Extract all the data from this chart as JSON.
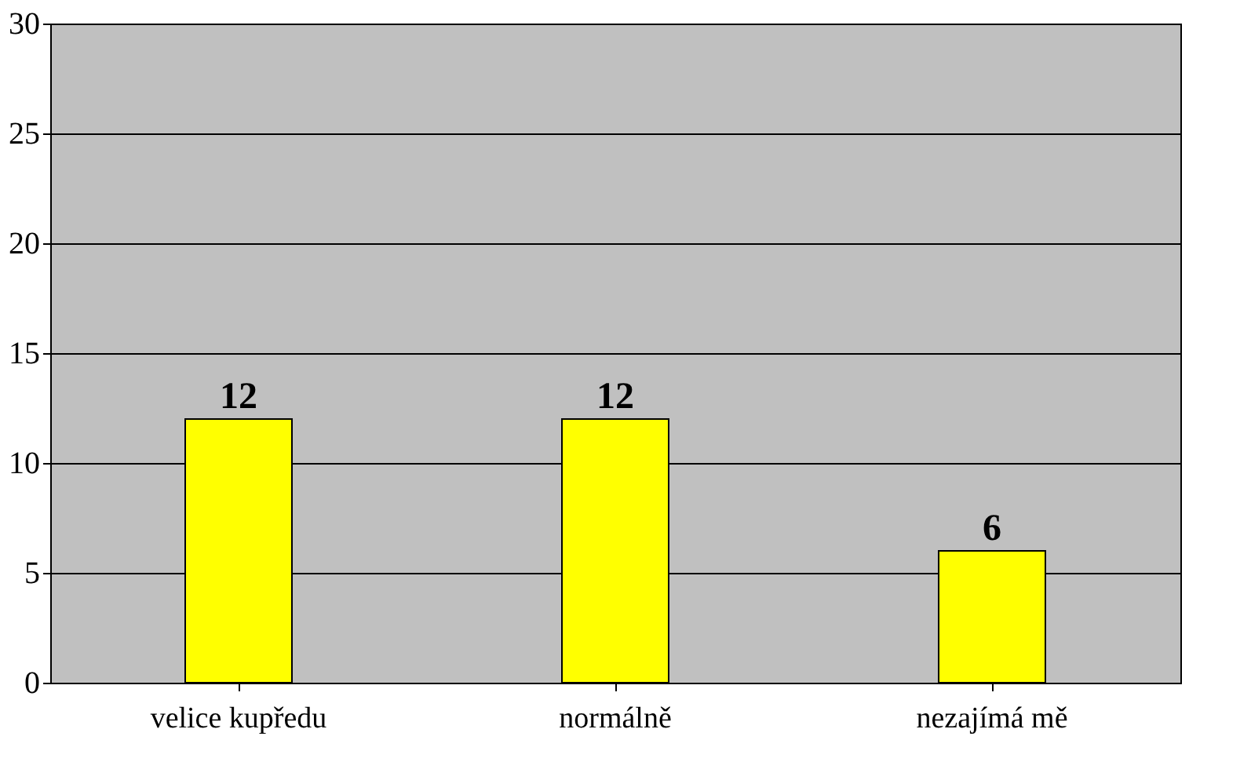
{
  "chart_data": {
    "type": "bar",
    "categories": [
      "velice kupředu",
      "normálně",
      "nezajímá mě"
    ],
    "values": [
      12,
      12,
      6
    ],
    "color": "#ffff00",
    "ylim": [
      0,
      30
    ],
    "yticks": [
      0,
      5,
      10,
      15,
      20,
      25,
      30
    ],
    "grid": "y",
    "data_labels": true
  }
}
